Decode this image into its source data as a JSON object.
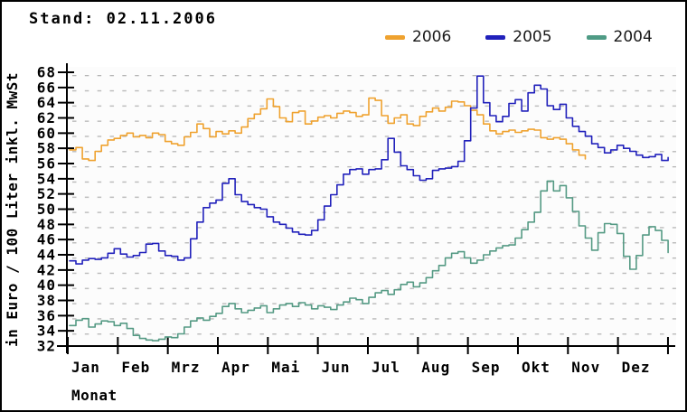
{
  "title": "Stand: 02.11.2006",
  "legend": {
    "items": [
      {
        "label": "2006",
        "color": "#efa22f"
      },
      {
        "label": "2005",
        "color": "#2121bb"
      },
      {
        "label": "2004",
        "color": "#4f9b85"
      }
    ]
  },
  "colors": {
    "axis": "#000000",
    "grid_dash": "#b5b5b5",
    "plot_background": "#fcfcfc",
    "series_2006": "#efa22f",
    "series_2005": "#2121bb",
    "series_2004": "#559a84"
  },
  "chart_data": {
    "type": "line",
    "title": "Stand: 02.11.2006",
    "xlabel": "Monat",
    "ylabel": "in Euro / 100 Liter inkl. MwSt",
    "x_categories": [
      "Jan",
      "Feb",
      "Mrz",
      "Apr",
      "Mai",
      "Jun",
      "Jul",
      "Aug",
      "Sep",
      "Okt",
      "Nov",
      "Dez"
    ],
    "ylim": [
      32,
      68
    ],
    "ytick_step": 2,
    "grid": "dotted",
    "legend_position": "top-right",
    "line_style": "step",
    "x_unit": "month (0 = Jan 1, 12 = Dec 31)",
    "y_unit": "Euro per 100 Liter incl. MwSt",
    "series": [
      {
        "name": "2006",
        "color": "#efa22f",
        "x_start_month": 0.0,
        "x_step_month": 0.1273,
        "values": [
          57.8,
          58.1,
          56.6,
          56.4,
          57.6,
          58.4,
          59.1,
          59.3,
          59.7,
          60.0,
          59.5,
          59.7,
          59.4,
          60.0,
          59.8,
          58.9,
          58.6,
          58.4,
          59.5,
          60.1,
          61.2,
          60.6,
          59.5,
          60.2,
          59.9,
          60.3,
          60.0,
          60.8,
          61.9,
          62.5,
          63.2,
          64.5,
          63.5,
          62.0,
          61.5,
          62.7,
          62.9,
          61.2,
          61.6,
          62.1,
          62.3,
          62.0,
          62.6,
          62.9,
          62.7,
          62.2,
          62.4,
          64.6,
          64.3,
          62.3,
          61.3,
          62.0,
          62.4,
          61.2,
          61.0,
          62.2,
          62.8,
          63.3,
          62.9,
          63.4,
          64.2,
          64.1,
          63.6,
          63.0,
          62.4,
          61.2,
          60.3,
          59.9,
          60.2,
          60.4,
          60.1,
          60.3,
          60.5,
          60.4,
          59.4,
          59.2,
          59.4,
          59.2,
          58.6,
          57.8,
          57.1,
          56.6
        ]
      },
      {
        "name": "2005",
        "color": "#2121bb",
        "x_start_month": 0.0,
        "x_step_month": 0.1273,
        "values": [
          43.2,
          42.8,
          43.3,
          43.5,
          43.4,
          43.6,
          44.2,
          44.8,
          44.1,
          43.7,
          43.9,
          44.3,
          45.4,
          45.5,
          44.5,
          43.9,
          43.8,
          43.3,
          43.6,
          46.1,
          48.3,
          50.2,
          50.8,
          51.2,
          53.4,
          54.0,
          51.9,
          51.0,
          50.6,
          50.2,
          50.0,
          49.0,
          48.3,
          48.0,
          47.5,
          47.0,
          46.7,
          46.6,
          47.2,
          48.6,
          50.4,
          51.9,
          53.2,
          54.6,
          55.2,
          55.3,
          54.6,
          55.2,
          55.3,
          56.5,
          59.3,
          57.5,
          55.7,
          55.2,
          54.4,
          53.8,
          54.0,
          55.1,
          55.3,
          55.4,
          55.6,
          56.3,
          59.0,
          63.3,
          67.5,
          64.0,
          62.3,
          61.5,
          62.2,
          63.9,
          64.4,
          62.9,
          65.3,
          66.3,
          65.8,
          63.6,
          63.1,
          63.8,
          62.0,
          60.9,
          60.2,
          59.6,
          58.6,
          58.1,
          57.4,
          57.8,
          58.4,
          58.0,
          57.6,
          57.1,
          56.8,
          56.9,
          57.2,
          56.4,
          56.8
        ]
      },
      {
        "name": "2004",
        "color": "#559a84",
        "x_start_month": 0.0,
        "x_step_month": 0.1273,
        "values": [
          34.7,
          35.4,
          35.6,
          34.5,
          34.9,
          35.3,
          35.2,
          34.7,
          35.0,
          34.3,
          33.4,
          33.0,
          32.8,
          32.7,
          32.9,
          33.2,
          33.1,
          33.6,
          34.5,
          35.3,
          35.7,
          35.4,
          35.9,
          36.3,
          37.2,
          37.6,
          36.9,
          36.4,
          36.7,
          37.0,
          37.3,
          36.4,
          36.9,
          37.4,
          37.6,
          37.2,
          37.7,
          37.4,
          36.9,
          37.3,
          37.1,
          36.8,
          37.4,
          37.8,
          38.3,
          38.1,
          37.6,
          38.4,
          39.0,
          39.3,
          38.8,
          39.4,
          40.1,
          40.4,
          39.8,
          40.3,
          41.0,
          41.9,
          42.6,
          43.6,
          44.2,
          44.4,
          43.6,
          42.9,
          43.3,
          44.0,
          44.5,
          44.9,
          45.2,
          45.3,
          46.2,
          47.3,
          48.3,
          49.6,
          52.4,
          53.7,
          52.4,
          53.1,
          51.5,
          49.7,
          47.8,
          46.2,
          44.6,
          46.9,
          48.1,
          48.0,
          46.8,
          43.8,
          42.1,
          43.9,
          46.6,
          47.7,
          47.2,
          45.9,
          44.3
        ]
      }
    ]
  }
}
